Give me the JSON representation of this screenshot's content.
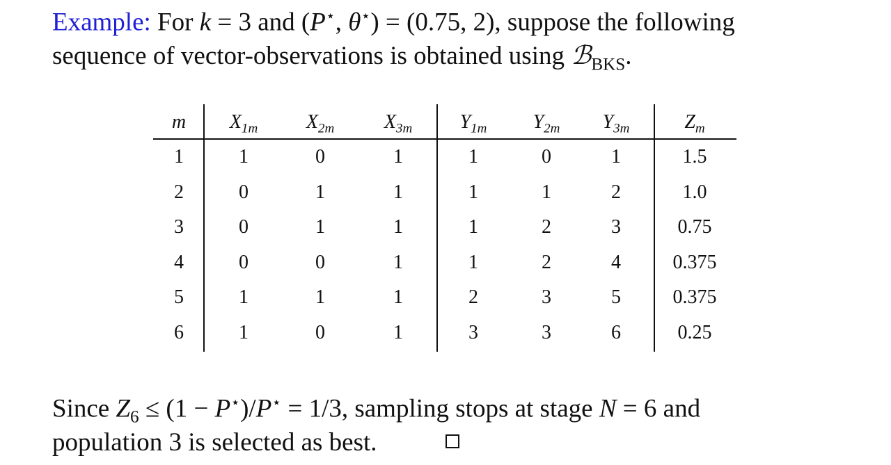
{
  "intro": {
    "lines": [
      [
        "Example:",
        "For",
        "k",
        "= 3 and (",
        "P",
        "⋆",
        ", ",
        "θ",
        "⋆",
        ") = (0.75, 2), suppose the following"
      ],
      [
        "sequence of vector-observations is obtained using",
        "ℬ",
        "BKS",
        "."
      ]
    ]
  },
  "table": {
    "header": [
      {
        "base": "m"
      },
      {
        "base": "X",
        "sub": "1m"
      },
      {
        "base": "X",
        "sub": "2m"
      },
      {
        "base": "X",
        "sub": "3m"
      },
      {
        "base": "Y",
        "sub": "1m"
      },
      {
        "base": "Y",
        "sub": "2m"
      },
      {
        "base": "Y",
        "sub": "3m"
      },
      {
        "base": "Z",
        "sub": "m"
      }
    ],
    "rows": [
      [
        "1",
        "1",
        "0",
        "1",
        "1",
        "0",
        "1",
        "1.5"
      ],
      [
        "2",
        "0",
        "1",
        "1",
        "1",
        "1",
        "2",
        "1.0"
      ],
      [
        "3",
        "0",
        "1",
        "1",
        "1",
        "2",
        "3",
        "0.75"
      ],
      [
        "4",
        "0",
        "0",
        "1",
        "1",
        "2",
        "4",
        "0.375"
      ],
      [
        "5",
        "1",
        "1",
        "1",
        "2",
        "3",
        "5",
        "0.375"
      ],
      [
        "6",
        "1",
        "0",
        "1",
        "3",
        "3",
        "6",
        "0.25"
      ]
    ]
  },
  "conclusion": {
    "lines": [
      [
        "Since",
        "Z",
        "6",
        "≤ (1 − ",
        "P",
        "⋆",
        ")/",
        "P",
        "⋆",
        " = 1/3, sampling stops at stage",
        "N",
        "= 6 and"
      ],
      [
        "population 3 is selected as best."
      ]
    ]
  }
}
